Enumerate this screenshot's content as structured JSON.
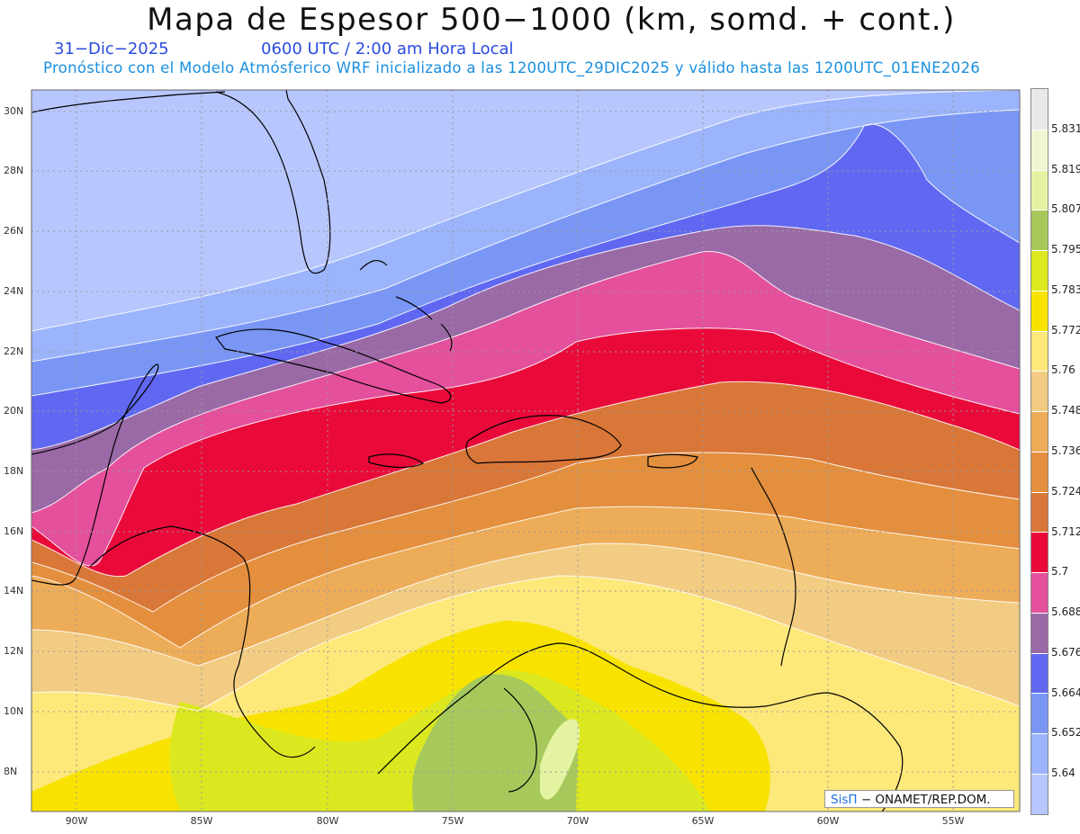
{
  "header": {
    "title": "Mapa de Espesor 500−1000 (km, somd. + cont.)",
    "date": "31−Dic−2025",
    "time": "0600 UTC / 2:00 am Hora Local",
    "forecast": "Pronóstico con el Modelo Atmósferico WRF inicializado a las 1200UTC_29DIC2025 y válido hasta las  1200UTC_01ENE2026"
  },
  "axes": {
    "latitudes": [
      "30N",
      "28N",
      "26N",
      "24N",
      "22N",
      "20N",
      "18N",
      "16N",
      "14N",
      "12N",
      "10N",
      "8N"
    ],
    "longitudes": [
      "90W",
      "85W",
      "80W",
      "75W",
      "70W",
      "65W",
      "60W",
      "55W"
    ]
  },
  "legend": {
    "levels": [
      "5.831",
      "5.819",
      "5.807",
      "5.795",
      "5.783",
      "5.772",
      "5.76",
      "5.748",
      "5.736",
      "5.724",
      "5.712",
      "5.7",
      "5.688",
      "5.676",
      "5.664",
      "5.652",
      "5.64"
    ],
    "colors": [
      "#e8e8e8",
      "#f2f5d2",
      "#e4f3a2",
      "#a7c95c",
      "#dbe81f",
      "#f8e300",
      "#fde87a",
      "#f2cc82",
      "#edac57",
      "#e38f3d",
      "#d97738",
      "#ea0a3a",
      "#e4509c",
      "#9a6aa6",
      "#6068f2",
      "#7a96f5",
      "#9bb4fb",
      "#b7c6fd"
    ]
  },
  "credit": {
    "brand": "SisΠ",
    "text": "− ONAMET/REP.DOM."
  },
  "map_layers": {
    "color_order": [
      "#b7c6fd",
      "#9bb4fb",
      "#7a96f5",
      "#6068f2",
      "#9a6aa6",
      "#e4509c",
      "#ea0a3a",
      "#d97738",
      "#e38f3d",
      "#edac57",
      "#f2cc82",
      "#fde87a",
      "#f8e300",
      "#dbe81f",
      "#a7c95c",
      "#e4f3a2"
    ]
  }
}
